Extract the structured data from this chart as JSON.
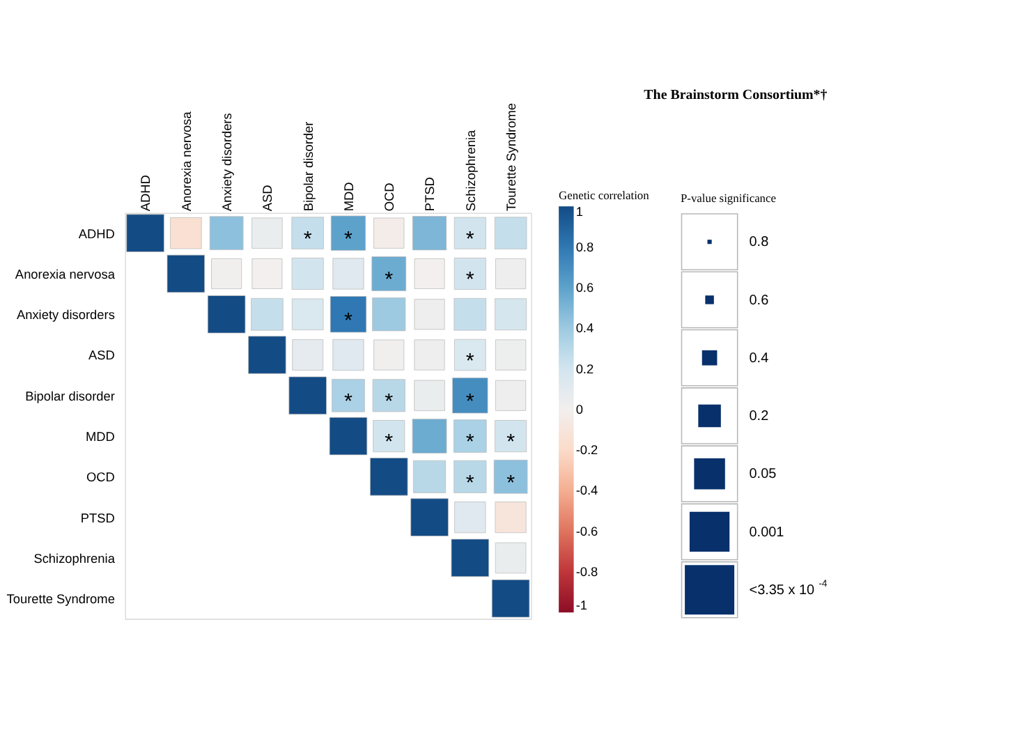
{
  "chart_data": {
    "type": "heatmap",
    "title": "The Brainstorm Consortium*†",
    "clabel": "Genetic correlation",
    "categories": [
      "ADHD",
      "Anorexia nervosa",
      "Anxiety disorders",
      "ASD",
      "Bipolar disorder",
      "MDD",
      "OCD",
      "PTSD",
      "Schizophrenia",
      "Tourette Syndrome"
    ],
    "y_categories": [
      "ADHD",
      "Anorexia nervosa",
      "Anxiety disorders",
      "ASD",
      "Bipolar disorder",
      "MDD",
      "OCD",
      "PTSD",
      "Schizophrenia",
      "Tourette Syndrome"
    ],
    "cells": [
      [
        1,
        -0.15,
        0.45,
        0.05,
        0.25,
        0.6,
        -0.03,
        0.5,
        0.2,
        0.25
      ],
      [
        null,
        1,
        0.01,
        0.0,
        0.2,
        0.12,
        0.55,
        0.0,
        0.2,
        0.02
      ],
      [
        null,
        null,
        1,
        0.25,
        0.15,
        0.8,
        0.4,
        0.02,
        0.25,
        0.18
      ],
      [
        null,
        null,
        null,
        1,
        0.08,
        0.12,
        0.01,
        0.02,
        0.15,
        0.03
      ],
      [
        null,
        null,
        null,
        null,
        1,
        0.35,
        0.3,
        0.05,
        0.7,
        0.02
      ],
      [
        null,
        null,
        null,
        null,
        null,
        1,
        0.2,
        0.55,
        0.35,
        0.2
      ],
      [
        null,
        null,
        null,
        null,
        null,
        null,
        1,
        0.3,
        0.3,
        0.45
      ],
      [
        null,
        null,
        null,
        null,
        null,
        null,
        null,
        1,
        0.12,
        -0.1
      ],
      [
        null,
        null,
        null,
        null,
        null,
        null,
        null,
        null,
        1,
        0.05
      ],
      [
        null,
        null,
        null,
        null,
        null,
        null,
        null,
        null,
        null,
        1
      ]
    ],
    "cell_labels": [
      [
        null,
        null,
        null,
        null,
        "*",
        "*",
        null,
        null,
        "*",
        null
      ],
      [
        null,
        null,
        null,
        null,
        null,
        null,
        "*",
        null,
        "*",
        null
      ],
      [
        null,
        null,
        null,
        null,
        null,
        "*",
        null,
        null,
        null,
        null
      ],
      [
        null,
        null,
        null,
        null,
        null,
        null,
        null,
        null,
        "*",
        null
      ],
      [
        null,
        null,
        null,
        null,
        null,
        "*",
        "*",
        null,
        "*",
        null
      ],
      [
        null,
        null,
        null,
        null,
        null,
        null,
        "*",
        null,
        "*",
        "*"
      ],
      [
        null,
        null,
        null,
        null,
        null,
        null,
        null,
        null,
        "*",
        "*"
      ],
      [
        null,
        null,
        null,
        null,
        null,
        null,
        null,
        null,
        null,
        null
      ],
      [
        null,
        null,
        null,
        null,
        null,
        null,
        null,
        null,
        null,
        null
      ],
      [
        null,
        null,
        null,
        null,
        null,
        null,
        null,
        null,
        null,
        null
      ]
    ],
    "clim": [
      -1,
      1
    ],
    "cticks": [
      1,
      0.8,
      0.6,
      0.4,
      0.2,
      0,
      -0.2,
      -0.4,
      -0.6,
      -0.8,
      -1
    ],
    "annotations": [
      "P-value significance",
      "0.8",
      "0.6",
      "0.4",
      "0.2",
      "0.05",
      "0.001",
      "<3.35 x 10$^{-4}$"
    ]
  }
}
